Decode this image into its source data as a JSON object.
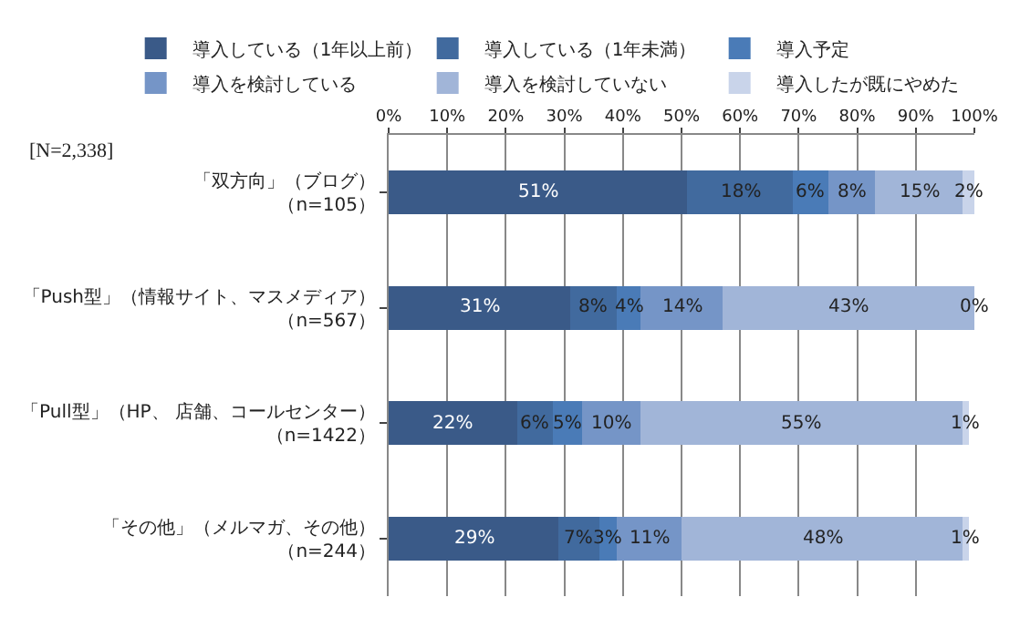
{
  "chart_data": {
    "type": "bar",
    "orientation": "horizontal",
    "stacked": true,
    "categories": [
      "「双方向」（ブログ）（n=105）",
      "「Push型」（情報サイト、マスメディア）（n=567）",
      "「Pull型」（HP、 店舗、コールセンター）（n=1422）",
      "「その他」（メルマガ、その他）（n=244）"
    ],
    "series": [
      {
        "name": "導入している（1年以上前）",
        "color": "#3a5a88",
        "values": [
          51,
          31,
          22,
          29
        ],
        "value_labels": [
          "51%",
          "31%",
          "22%",
          "29%"
        ]
      },
      {
        "name": "導入している（1年未満）",
        "color": "#416a9e",
        "values": [
          18,
          8,
          6,
          7
        ],
        "value_labels": [
          "18%",
          "8%",
          "6%",
          "7%"
        ]
      },
      {
        "name": "導入予定",
        "color": "#4a7bb7",
        "values": [
          6,
          4,
          5,
          3
        ],
        "value_labels": [
          "6%",
          "4%",
          "5%",
          "3%"
        ]
      },
      {
        "name": "導入を検討している",
        "color": "#7595c7",
        "values": [
          8,
          14,
          10,
          11
        ],
        "value_labels": [
          "8%",
          "14%",
          "10%",
          "11%"
        ]
      },
      {
        "name": "導入を検討していない",
        "color": "#a1b5d8",
        "values": [
          15,
          43,
          55,
          48
        ],
        "value_labels": [
          "15%",
          "43%",
          "55%",
          "48%"
        ]
      },
      {
        "name": "導入したが既にやめた",
        "color": "#c9d4ea",
        "values": [
          2,
          0,
          1,
          1
        ],
        "value_labels": [
          "2%",
          "0%",
          "1%",
          "1%"
        ]
      }
    ],
    "xlim": [
      0,
      100
    ],
    "xticks": [
      {
        "value": 0,
        "label": "0%"
      },
      {
        "value": 10,
        "label": "10%"
      },
      {
        "value": 20,
        "label": "20%"
      },
      {
        "value": 30,
        "label": "30%"
      },
      {
        "value": 40,
        "label": "40%"
      },
      {
        "value": 50,
        "label": "50%"
      },
      {
        "value": 60,
        "label": "60%"
      },
      {
        "value": 70,
        "label": "70%"
      },
      {
        "value": 80,
        "label": "80%"
      },
      {
        "value": 90,
        "label": "90%"
      },
      {
        "value": 100,
        "label": "100%"
      }
    ],
    "grid": "x",
    "legend": "top",
    "annotations": [
      "[N=2,338]"
    ]
  }
}
